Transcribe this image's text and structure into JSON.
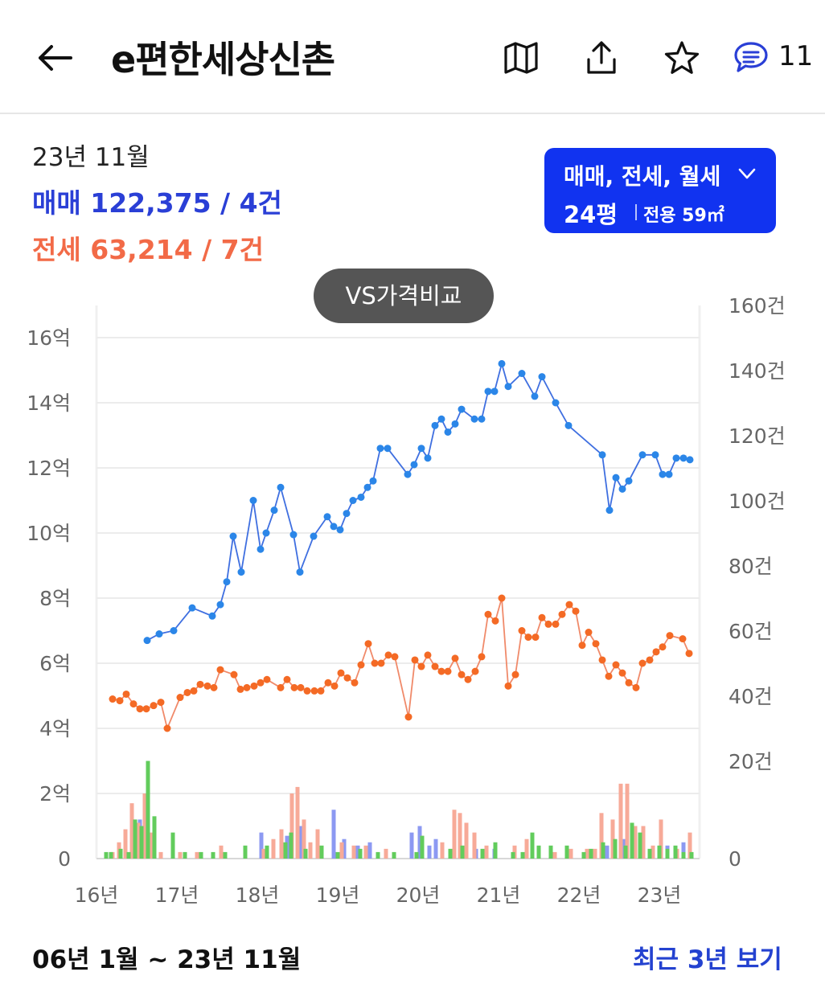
{
  "header": {
    "title": "e편한세상신촌",
    "comment_count": "11",
    "icons": [
      "back-arrow-icon",
      "map-icon",
      "share-icon",
      "star-icon",
      "comment-icon"
    ]
  },
  "summary": {
    "month": "23년 11월",
    "sale_label": "매매",
    "sale_value": "122,375 / 4건",
    "jeonse_label": "전세",
    "jeonse_value": "63,214 / 7건"
  },
  "filter": {
    "type": "매매, 전세, 월세",
    "size": "24평",
    "area": "전용 59㎡"
  },
  "vs_button": "VS가격비교",
  "range": "06년 1월 ~ 23년 11월",
  "recent_link": "최근 3년 보기",
  "colors": {
    "sale": "#3f6fe0",
    "sale_point": "#2b86e8",
    "jeonse": "#f08a6a",
    "jeonse_point": "#f46a25",
    "vol_sale": "#8c99f2",
    "vol_jeonse": "#f7aa98",
    "vol_monthly": "#62cc5c",
    "filter_bg": "#1133f0"
  },
  "chart_data": {
    "type": "line",
    "x_ticks": [
      "16년",
      "17년",
      "18년",
      "19년",
      "20년",
      "21년",
      "22년",
      "23년"
    ],
    "x_tick_values": [
      2016,
      2017,
      2018,
      2019,
      2020,
      2021,
      2022,
      2023
    ],
    "xlim": [
      2016.0,
      2023.5
    ],
    "y_left_ticks": [
      "16억",
      "14억",
      "12억",
      "10억",
      "8억",
      "6억",
      "4억",
      "2억",
      "0"
    ],
    "y_left_tick_values": [
      16,
      14,
      12,
      10,
      8,
      6,
      4,
      2,
      0
    ],
    "ylim_left": [
      0,
      16
    ],
    "y_right_ticks": [
      "160건",
      "140건",
      "120건",
      "100건",
      "80건",
      "60건",
      "40건",
      "20건",
      "0"
    ],
    "y_right_tick_values": [
      160,
      140,
      120,
      100,
      80,
      60,
      40,
      20,
      0
    ],
    "ylim_right": [
      0,
      160
    ],
    "grid": true,
    "series": [
      {
        "name": "매매",
        "points": [
          [
            2016.63,
            6.7
          ],
          [
            2016.78,
            6.9
          ],
          [
            2016.96,
            7.0
          ],
          [
            2017.19,
            7.7
          ],
          [
            2017.44,
            7.45
          ],
          [
            2017.54,
            7.8
          ],
          [
            2017.62,
            8.5
          ],
          [
            2017.7,
            9.9
          ],
          [
            2017.8,
            8.8
          ],
          [
            2017.95,
            11.0
          ],
          [
            2018.04,
            9.5
          ],
          [
            2018.11,
            10.0
          ],
          [
            2018.21,
            10.7
          ],
          [
            2018.29,
            11.4
          ],
          [
            2018.45,
            9.95
          ],
          [
            2018.53,
            8.8
          ],
          [
            2018.7,
            9.9
          ],
          [
            2018.87,
            10.5
          ],
          [
            2018.95,
            10.2
          ],
          [
            2019.03,
            10.1
          ],
          [
            2019.11,
            10.6
          ],
          [
            2019.19,
            11.0
          ],
          [
            2019.29,
            11.1
          ],
          [
            2019.37,
            11.4
          ],
          [
            2019.44,
            11.6
          ],
          [
            2019.53,
            12.6
          ],
          [
            2019.62,
            12.6
          ],
          [
            2019.87,
            11.8
          ],
          [
            2019.95,
            12.1
          ],
          [
            2020.04,
            12.6
          ],
          [
            2020.12,
            12.3
          ],
          [
            2020.21,
            13.3
          ],
          [
            2020.29,
            13.5
          ],
          [
            2020.37,
            13.1
          ],
          [
            2020.46,
            13.35
          ],
          [
            2020.54,
            13.8
          ],
          [
            2020.7,
            13.5
          ],
          [
            2020.79,
            13.5
          ],
          [
            2020.87,
            14.35
          ],
          [
            2020.95,
            14.35
          ],
          [
            2021.04,
            15.2
          ],
          [
            2021.12,
            14.5
          ],
          [
            2021.29,
            14.9
          ],
          [
            2021.45,
            14.2
          ],
          [
            2021.54,
            14.8
          ],
          [
            2021.71,
            14.0
          ],
          [
            2021.87,
            13.3
          ],
          [
            2022.29,
            12.4
          ],
          [
            2022.38,
            10.7
          ],
          [
            2022.46,
            11.7
          ],
          [
            2022.54,
            11.35
          ],
          [
            2022.62,
            11.6
          ],
          [
            2022.79,
            12.4
          ],
          [
            2022.95,
            12.4
          ],
          [
            2023.04,
            11.8
          ],
          [
            2023.12,
            11.8
          ],
          [
            2023.21,
            12.3
          ],
          [
            2023.3,
            12.3
          ],
          [
            2023.38,
            12.25
          ]
        ]
      },
      {
        "name": "전세",
        "points": [
          [
            2016.2,
            4.9
          ],
          [
            2016.29,
            4.85
          ],
          [
            2016.37,
            5.05
          ],
          [
            2016.46,
            4.75
          ],
          [
            2016.54,
            4.6
          ],
          [
            2016.62,
            4.6
          ],
          [
            2016.71,
            4.7
          ],
          [
            2016.8,
            4.8
          ],
          [
            2016.88,
            4.0
          ],
          [
            2017.04,
            4.95
          ],
          [
            2017.13,
            5.1
          ],
          [
            2017.21,
            5.15
          ],
          [
            2017.29,
            5.35
          ],
          [
            2017.38,
            5.3
          ],
          [
            2017.46,
            5.25
          ],
          [
            2017.54,
            5.8
          ],
          [
            2017.71,
            5.65
          ],
          [
            2017.79,
            5.2
          ],
          [
            2017.87,
            5.25
          ],
          [
            2017.96,
            5.3
          ],
          [
            2018.04,
            5.4
          ],
          [
            2018.12,
            5.5
          ],
          [
            2018.29,
            5.25
          ],
          [
            2018.37,
            5.5
          ],
          [
            2018.46,
            5.25
          ],
          [
            2018.54,
            5.25
          ],
          [
            2018.62,
            5.15
          ],
          [
            2018.71,
            5.15
          ],
          [
            2018.79,
            5.15
          ],
          [
            2018.88,
            5.4
          ],
          [
            2018.96,
            5.3
          ],
          [
            2019.04,
            5.7
          ],
          [
            2019.12,
            5.55
          ],
          [
            2019.21,
            5.4
          ],
          [
            2019.29,
            5.95
          ],
          [
            2019.38,
            6.6
          ],
          [
            2019.46,
            6.0
          ],
          [
            2019.54,
            6.0
          ],
          [
            2019.63,
            6.25
          ],
          [
            2019.71,
            6.2
          ],
          [
            2019.88,
            4.35
          ],
          [
            2019.96,
            6.1
          ],
          [
            2020.04,
            5.9
          ],
          [
            2020.12,
            6.25
          ],
          [
            2020.21,
            5.9
          ],
          [
            2020.29,
            5.75
          ],
          [
            2020.37,
            5.75
          ],
          [
            2020.46,
            6.15
          ],
          [
            2020.54,
            5.65
          ],
          [
            2020.62,
            5.5
          ],
          [
            2020.71,
            5.75
          ],
          [
            2020.79,
            6.2
          ],
          [
            2020.87,
            7.5
          ],
          [
            2020.96,
            7.3
          ],
          [
            2021.04,
            8.0
          ],
          [
            2021.12,
            5.3
          ],
          [
            2021.21,
            5.65
          ],
          [
            2021.29,
            7.0
          ],
          [
            2021.37,
            6.8
          ],
          [
            2021.46,
            6.8
          ],
          [
            2021.54,
            7.4
          ],
          [
            2021.62,
            7.2
          ],
          [
            2021.71,
            7.2
          ],
          [
            2021.79,
            7.5
          ],
          [
            2021.88,
            7.8
          ],
          [
            2021.96,
            7.6
          ],
          [
            2022.04,
            6.55
          ],
          [
            2022.12,
            6.95
          ],
          [
            2022.21,
            6.6
          ],
          [
            2022.29,
            6.1
          ],
          [
            2022.37,
            5.6
          ],
          [
            2022.46,
            5.95
          ],
          [
            2022.54,
            5.7
          ],
          [
            2022.62,
            5.4
          ],
          [
            2022.71,
            5.25
          ],
          [
            2022.79,
            6.0
          ],
          [
            2022.88,
            6.1
          ],
          [
            2022.96,
            6.35
          ],
          [
            2023.04,
            6.5
          ],
          [
            2023.13,
            6.85
          ],
          [
            2023.29,
            6.75
          ],
          [
            2023.37,
            6.3
          ]
        ]
      }
    ],
    "volume": {
      "unit": "건",
      "series": [
        {
          "name": "매매",
          "points": [
            [
              2016.46,
              5
            ],
            [
              2016.54,
              12
            ],
            [
              2016.62,
              15
            ],
            [
              2018.05,
              8
            ],
            [
              2018.37,
              7
            ],
            [
              2018.55,
              10
            ],
            [
              2018.75,
              4
            ],
            [
              2018.95,
              15
            ],
            [
              2019.08,
              6
            ],
            [
              2019.25,
              4
            ],
            [
              2019.4,
              5
            ],
            [
              2019.92,
              8
            ],
            [
              2020.02,
              10
            ],
            [
              2020.14,
              4
            ],
            [
              2020.22,
              6
            ],
            [
              2020.45,
              4
            ],
            [
              2020.72,
              3
            ],
            [
              2020.95,
              3
            ],
            [
              2022.35,
              4
            ],
            [
              2022.55,
              6
            ],
            [
              2023.1,
              4
            ],
            [
              2023.3,
              5
            ],
            [
              2023.38,
              3
            ]
          ]
        },
        {
          "name": "전세",
          "points": [
            [
              2016.2,
              2
            ],
            [
              2016.28,
              5
            ],
            [
              2016.36,
              9
            ],
            [
              2016.44,
              17
            ],
            [
              2016.52,
              11
            ],
            [
              2016.6,
              20
            ],
            [
              2016.68,
              8
            ],
            [
              2016.8,
              2
            ],
            [
              2017.04,
              2
            ],
            [
              2017.25,
              2
            ],
            [
              2017.55,
              4
            ],
            [
              2017.85,
              2
            ],
            [
              2018.08,
              3
            ],
            [
              2018.2,
              6
            ],
            [
              2018.3,
              9
            ],
            [
              2018.43,
              20
            ],
            [
              2018.5,
              22
            ],
            [
              2018.58,
              12
            ],
            [
              2018.66,
              5
            ],
            [
              2018.75,
              9
            ],
            [
              2019.05,
              5
            ],
            [
              2019.2,
              4
            ],
            [
              2019.35,
              4
            ],
            [
              2019.6,
              3
            ],
            [
              2020.05,
              7
            ],
            [
              2020.3,
              5
            ],
            [
              2020.45,
              15
            ],
            [
              2020.52,
              14
            ],
            [
              2020.6,
              11
            ],
            [
              2020.7,
              8
            ],
            [
              2020.85,
              4
            ],
            [
              2021.2,
              4
            ],
            [
              2021.35,
              6
            ],
            [
              2021.5,
              3
            ],
            [
              2021.7,
              2
            ],
            [
              2021.9,
              3
            ],
            [
              2022.1,
              3
            ],
            [
              2022.2,
              3
            ],
            [
              2022.28,
              14
            ],
            [
              2022.42,
              12
            ],
            [
              2022.52,
              23
            ],
            [
              2022.6,
              23
            ],
            [
              2022.7,
              10
            ],
            [
              2022.8,
              10
            ],
            [
              2022.92,
              4
            ],
            [
              2023.02,
              12
            ],
            [
              2023.22,
              3
            ],
            [
              2023.38,
              8
            ]
          ]
        },
        {
          "name": "월세",
          "points": [
            [
              2016.12,
              2
            ],
            [
              2016.18,
              2
            ],
            [
              2016.3,
              3
            ],
            [
              2016.4,
              2
            ],
            [
              2016.48,
              12
            ],
            [
              2016.56,
              10
            ],
            [
              2016.64,
              30
            ],
            [
              2016.72,
              13
            ],
            [
              2016.95,
              8
            ],
            [
              2017.1,
              2
            ],
            [
              2017.3,
              2
            ],
            [
              2017.45,
              2
            ],
            [
              2017.6,
              2
            ],
            [
              2017.85,
              4
            ],
            [
              2018.12,
              4
            ],
            [
              2018.35,
              5
            ],
            [
              2018.42,
              8
            ],
            [
              2018.6,
              3
            ],
            [
              2018.8,
              4
            ],
            [
              2019.0,
              2
            ],
            [
              2019.28,
              3
            ],
            [
              2019.5,
              2
            ],
            [
              2019.7,
              2
            ],
            [
              2019.98,
              2
            ],
            [
              2020.05,
              7
            ],
            [
              2020.4,
              3
            ],
            [
              2020.55,
              4
            ],
            [
              2020.8,
              3
            ],
            [
              2020.96,
              5
            ],
            [
              2021.18,
              2
            ],
            [
              2021.3,
              2
            ],
            [
              2021.42,
              8
            ],
            [
              2021.5,
              4
            ],
            [
              2021.65,
              4
            ],
            [
              2021.85,
              4
            ],
            [
              2022.06,
              2
            ],
            [
              2022.15,
              3
            ],
            [
              2022.3,
              5
            ],
            [
              2022.45,
              6
            ],
            [
              2022.58,
              4
            ],
            [
              2022.66,
              11
            ],
            [
              2022.76,
              8
            ],
            [
              2022.88,
              3
            ],
            [
              2023.0,
              4
            ],
            [
              2023.1,
              3
            ],
            [
              2023.2,
              4
            ],
            [
              2023.3,
              2
            ],
            [
              2023.4,
              2
            ]
          ]
        }
      ]
    }
  }
}
